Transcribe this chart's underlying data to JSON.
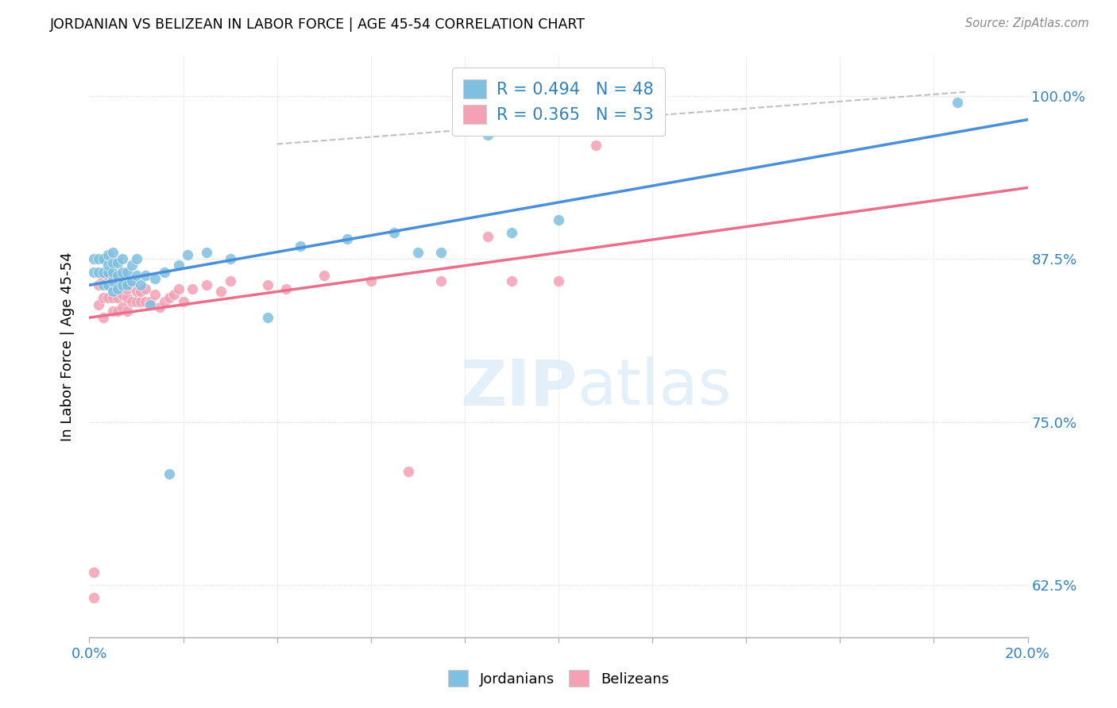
{
  "title": "JORDANIAN VS BELIZEAN IN LABOR FORCE | AGE 45-54 CORRELATION CHART",
  "source": "Source: ZipAtlas.com",
  "ylabel": "In Labor Force | Age 45-54",
  "xlim": [
    0.0,
    0.2
  ],
  "ylim": [
    0.585,
    1.03
  ],
  "yticks": [
    0.625,
    0.75,
    0.875,
    1.0
  ],
  "yticklabels": [
    "62.5%",
    "75.0%",
    "87.5%",
    "100.0%"
  ],
  "blue_color": "#7fbfdf",
  "pink_color": "#f4a0b5",
  "blue_line_color": "#4a90d9",
  "pink_line_color": "#e8708a",
  "gray_dash_color": "#c0c0c0",
  "blue_r": 0.494,
  "blue_n": 48,
  "pink_r": 0.365,
  "pink_n": 53,
  "legend_label_jordanians": "Jordanians",
  "legend_label_belizeans": "Belizeans",
  "watermark_zip": "ZIP",
  "watermark_atlas": "atlas",
  "jordanian_x": [
    0.001,
    0.001,
    0.002,
    0.002,
    0.003,
    0.003,
    0.003,
    0.004,
    0.004,
    0.004,
    0.004,
    0.005,
    0.005,
    0.005,
    0.005,
    0.005,
    0.006,
    0.006,
    0.006,
    0.007,
    0.007,
    0.007,
    0.008,
    0.008,
    0.009,
    0.009,
    0.01,
    0.01,
    0.011,
    0.012,
    0.013,
    0.014,
    0.016,
    0.017,
    0.019,
    0.021,
    0.025,
    0.03,
    0.038,
    0.045,
    0.055,
    0.065,
    0.07,
    0.075,
    0.085,
    0.09,
    0.1,
    0.185
  ],
  "jordanian_y": [
    0.865,
    0.875,
    0.865,
    0.875,
    0.855,
    0.865,
    0.875,
    0.855,
    0.865,
    0.87,
    0.878,
    0.85,
    0.858,
    0.865,
    0.872,
    0.88,
    0.852,
    0.862,
    0.872,
    0.855,
    0.865,
    0.875,
    0.855,
    0.865,
    0.858,
    0.87,
    0.862,
    0.875,
    0.855,
    0.862,
    0.84,
    0.86,
    0.865,
    0.71,
    0.87,
    0.878,
    0.88,
    0.875,
    0.83,
    0.885,
    0.89,
    0.895,
    0.88,
    0.88,
    0.97,
    0.895,
    0.905,
    0.995
  ],
  "belizean_x": [
    0.001,
    0.001,
    0.002,
    0.002,
    0.003,
    0.003,
    0.003,
    0.004,
    0.004,
    0.004,
    0.005,
    0.005,
    0.005,
    0.005,
    0.006,
    0.006,
    0.006,
    0.006,
    0.007,
    0.007,
    0.008,
    0.008,
    0.008,
    0.009,
    0.009,
    0.01,
    0.01,
    0.011,
    0.011,
    0.012,
    0.012,
    0.013,
    0.014,
    0.015,
    0.016,
    0.017,
    0.018,
    0.019,
    0.02,
    0.022,
    0.025,
    0.028,
    0.03,
    0.038,
    0.042,
    0.05,
    0.06,
    0.068,
    0.075,
    0.085,
    0.09,
    0.1,
    0.108
  ],
  "belizean_y": [
    0.615,
    0.635,
    0.84,
    0.855,
    0.83,
    0.845,
    0.86,
    0.845,
    0.855,
    0.862,
    0.835,
    0.845,
    0.852,
    0.86,
    0.835,
    0.845,
    0.852,
    0.86,
    0.838,
    0.848,
    0.835,
    0.845,
    0.852,
    0.842,
    0.855,
    0.842,
    0.85,
    0.842,
    0.85,
    0.842,
    0.852,
    0.842,
    0.848,
    0.838,
    0.842,
    0.845,
    0.848,
    0.852,
    0.842,
    0.852,
    0.855,
    0.85,
    0.858,
    0.855,
    0.852,
    0.862,
    0.858,
    0.712,
    0.858,
    0.892,
    0.858,
    0.858,
    0.962
  ]
}
